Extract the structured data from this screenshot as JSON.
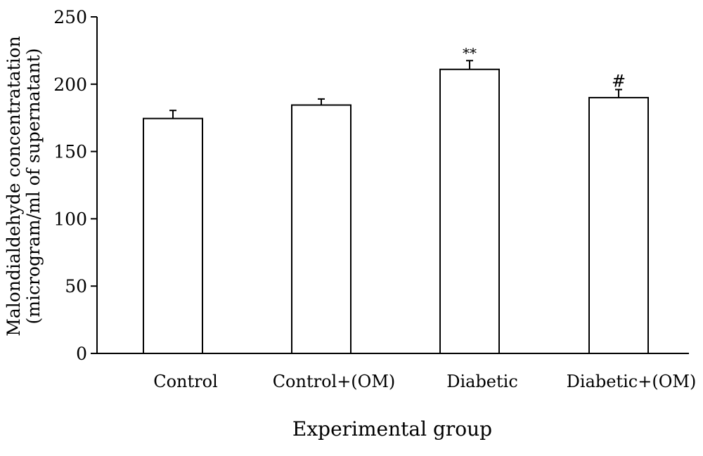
{
  "chart_data": {
    "type": "bar",
    "title": "",
    "xlabel": "Experimental group",
    "ylabel_lines": [
      "Malondialdehyde concentratation",
      "(microgram/ml of supernatant)"
    ],
    "categories": [
      "Control",
      "Control+(OM)",
      "Diabetic",
      "Diabetic+(OM)"
    ],
    "values": [
      174.5,
      184.5,
      211,
      190
    ],
    "errors": [
      6,
      4.5,
      6.5,
      6
    ],
    "annotations": [
      "",
      "",
      "**",
      "#"
    ],
    "ylim": [
      0,
      250
    ],
    "yticks": [
      0,
      50,
      100,
      150,
      200,
      250
    ],
    "grid": false,
    "colors": {
      "bar_fill": "#ffffff",
      "bar_stroke": "#000000"
    }
  }
}
